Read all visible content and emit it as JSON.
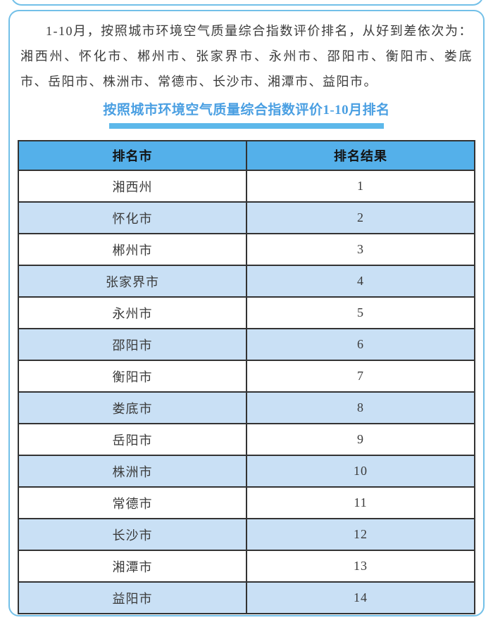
{
  "intro": {
    "text": "1-10月，按照城市环境空气质量综合指数评价排名，从好到差依次为：湘西州、怀化市、郴州市、张家界市、永州市、邵阳市、衡阳市、娄底市、岳阳市、株洲市、常德市、长沙市、湘潭市、益阳市。"
  },
  "section": {
    "title": "按照城市环境空气质量综合指数评价1-10月排名"
  },
  "table": {
    "headers": [
      "排名市",
      "排名结果"
    ],
    "rows": [
      [
        "湘西州",
        "1"
      ],
      [
        "怀化市",
        "2"
      ],
      [
        "郴州市",
        "3"
      ],
      [
        "张家界市",
        "4"
      ],
      [
        "永州市",
        "5"
      ],
      [
        "邵阳市",
        "6"
      ],
      [
        "衡阳市",
        "7"
      ],
      [
        "娄底市",
        "8"
      ],
      [
        "岳阳市",
        "9"
      ],
      [
        "株洲市",
        "10"
      ],
      [
        "常德市",
        "11"
      ],
      [
        "长沙市",
        "12"
      ],
      [
        "湘潭市",
        "13"
      ],
      [
        "益阳市",
        "14"
      ]
    ]
  },
  "colors": {
    "card_border": "#73c0e8",
    "title_text": "#4a9fe2",
    "title_underline": "#5db8ea",
    "table_header_bg": "#54b0ea",
    "row_alt_bg": "#c9e0f5",
    "table_border": "#333333",
    "body_text": "#3b3b3b",
    "header_text": "#141414"
  }
}
